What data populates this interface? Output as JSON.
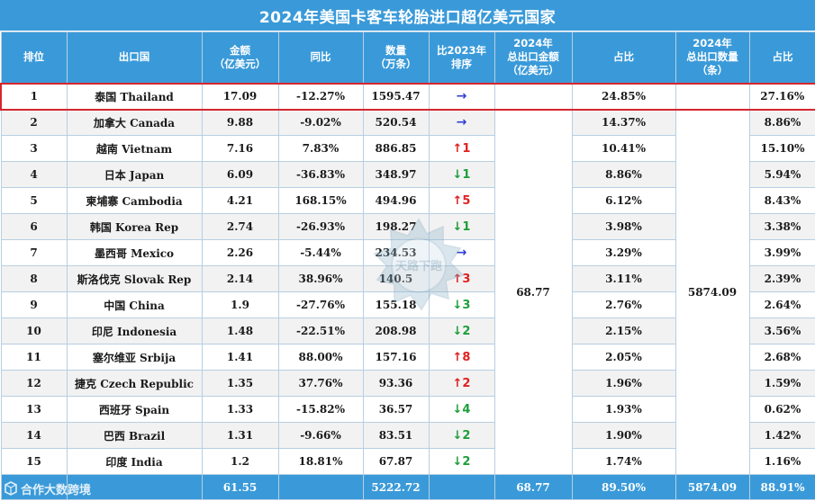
{
  "title": "2024年美国卡客车轮胎进口超亿美元国家",
  "headers": {
    "rank": "排位",
    "country": "出口国",
    "amount": "金额\n（亿美元）",
    "yoy": "同比",
    "qty": "数量\n（万条）",
    "rank_change": "比2023年\n排序",
    "total_amount": "2024年\n总出口金额\n（亿美元）",
    "share_amount": "占比",
    "total_qty": "2024年\n总出口数量\n（条）",
    "share_qty": "占比"
  },
  "rows": [
    {
      "rank": "1",
      "country": "泰国  Thailand",
      "amount": "17.09",
      "yoy": "-12.27%",
      "qty": "1595.47",
      "arrow": "→",
      "dir": "flat",
      "chg": "",
      "share_amount": "24.85%",
      "share_qty": "27.16%"
    },
    {
      "rank": "2",
      "country": "加拿大  Canada",
      "amount": "9.88",
      "yoy": "-9.02%",
      "qty": "520.54",
      "arrow": "→",
      "dir": "flat",
      "chg": "",
      "share_amount": "14.37%",
      "share_qty": "8.86%"
    },
    {
      "rank": "3",
      "country": "越南  Vietnam",
      "amount": "7.16",
      "yoy": "7.83%",
      "qty": "886.85",
      "arrow": "↑",
      "dir": "up",
      "chg": "1",
      "share_amount": "10.41%",
      "share_qty": "15.10%"
    },
    {
      "rank": "4",
      "country": "日本  Japan",
      "amount": "6.09",
      "yoy": "-36.83%",
      "qty": "348.97",
      "arrow": "↓",
      "dir": "down",
      "chg": "1",
      "share_amount": "8.86%",
      "share_qty": "5.94%"
    },
    {
      "rank": "5",
      "country": "柬埔寨  Cambodia",
      "amount": "4.21",
      "yoy": "168.15%",
      "qty": "494.96",
      "arrow": "↑",
      "dir": "up",
      "chg": "5",
      "share_amount": "6.12%",
      "share_qty": "8.43%"
    },
    {
      "rank": "6",
      "country": "韩国  Korea Rep",
      "amount": "2.74",
      "yoy": "-26.93%",
      "qty": "198.27",
      "arrow": "↓",
      "dir": "down",
      "chg": "1",
      "share_amount": "3.98%",
      "share_qty": "3.38%"
    },
    {
      "rank": "7",
      "country": "墨西哥  Mexico",
      "amount": "2.26",
      "yoy": "-5.44%",
      "qty": "234.53",
      "arrow": "→",
      "dir": "flat",
      "chg": "",
      "share_amount": "3.29%",
      "share_qty": "3.99%"
    },
    {
      "rank": "8",
      "country": "斯洛伐克  Slovak Rep",
      "amount": "2.14",
      "yoy": "38.96%",
      "qty": "140.5",
      "arrow": "↑",
      "dir": "up",
      "chg": "3",
      "share_amount": "3.11%",
      "share_qty": "2.39%"
    },
    {
      "rank": "9",
      "country": "中国  China",
      "amount": "1.9",
      "yoy": "-27.76%",
      "qty": "155.18",
      "arrow": "↓",
      "dir": "down",
      "chg": "3",
      "share_amount": "2.76%",
      "share_qty": "2.64%"
    },
    {
      "rank": "10",
      "country": "印尼  Indonesia",
      "amount": "1.48",
      "yoy": "-22.51%",
      "qty": "208.98",
      "arrow": "↓",
      "dir": "down",
      "chg": "2",
      "share_amount": "2.15%",
      "share_qty": "3.56%"
    },
    {
      "rank": "11",
      "country": "塞尔维亚  Srbija",
      "amount": "1.41",
      "yoy": "88.00%",
      "qty": "157.16",
      "arrow": "↑",
      "dir": "up",
      "chg": "8",
      "share_amount": "2.05%",
      "share_qty": "2.68%"
    },
    {
      "rank": "12",
      "country": "捷克  Czech Republic",
      "amount": "1.35",
      "yoy": "37.76%",
      "qty": "93.36",
      "arrow": "↑",
      "dir": "up",
      "chg": "2",
      "share_amount": "1.96%",
      "share_qty": "1.59%"
    },
    {
      "rank": "13",
      "country": "西班牙  Spain",
      "amount": "1.33",
      "yoy": "-15.82%",
      "qty": "36.57",
      "arrow": "↓",
      "dir": "down",
      "chg": "4",
      "share_amount": "1.93%",
      "share_qty": "0.62%"
    },
    {
      "rank": "14",
      "country": "巴西  Brazil",
      "amount": "1.31",
      "yoy": "-9.66%",
      "qty": "83.51",
      "arrow": "↓",
      "dir": "down",
      "chg": "2",
      "share_amount": "1.90%",
      "share_qty": "1.42%"
    },
    {
      "rank": "15",
      "country": "印度  India",
      "amount": "1.2",
      "yoy": "18.81%",
      "qty": "67.87",
      "arrow": "↓",
      "dir": "down",
      "chg": "2",
      "share_amount": "1.74%",
      "share_qty": "1.16%"
    }
  ],
  "merged": {
    "total_amount": "68.77",
    "total_qty": "5874.09"
  },
  "footer": {
    "amount": "61.55",
    "qty": "5222.72",
    "total_amount": "68.77",
    "share_amount": "89.50%",
    "total_qty": "5874.09",
    "share_qty": "88.91%"
  },
  "brand": {
    "text": "合作大数跨境",
    "watermark_text": "天路下跑"
  },
  "colors": {
    "header_blue": "#3a9ad9",
    "highlight_red": "#d6262d",
    "arrow_flat": "#2f3fd4",
    "arrow_up": "#e02020",
    "arrow_down": "#1e9e3a"
  }
}
